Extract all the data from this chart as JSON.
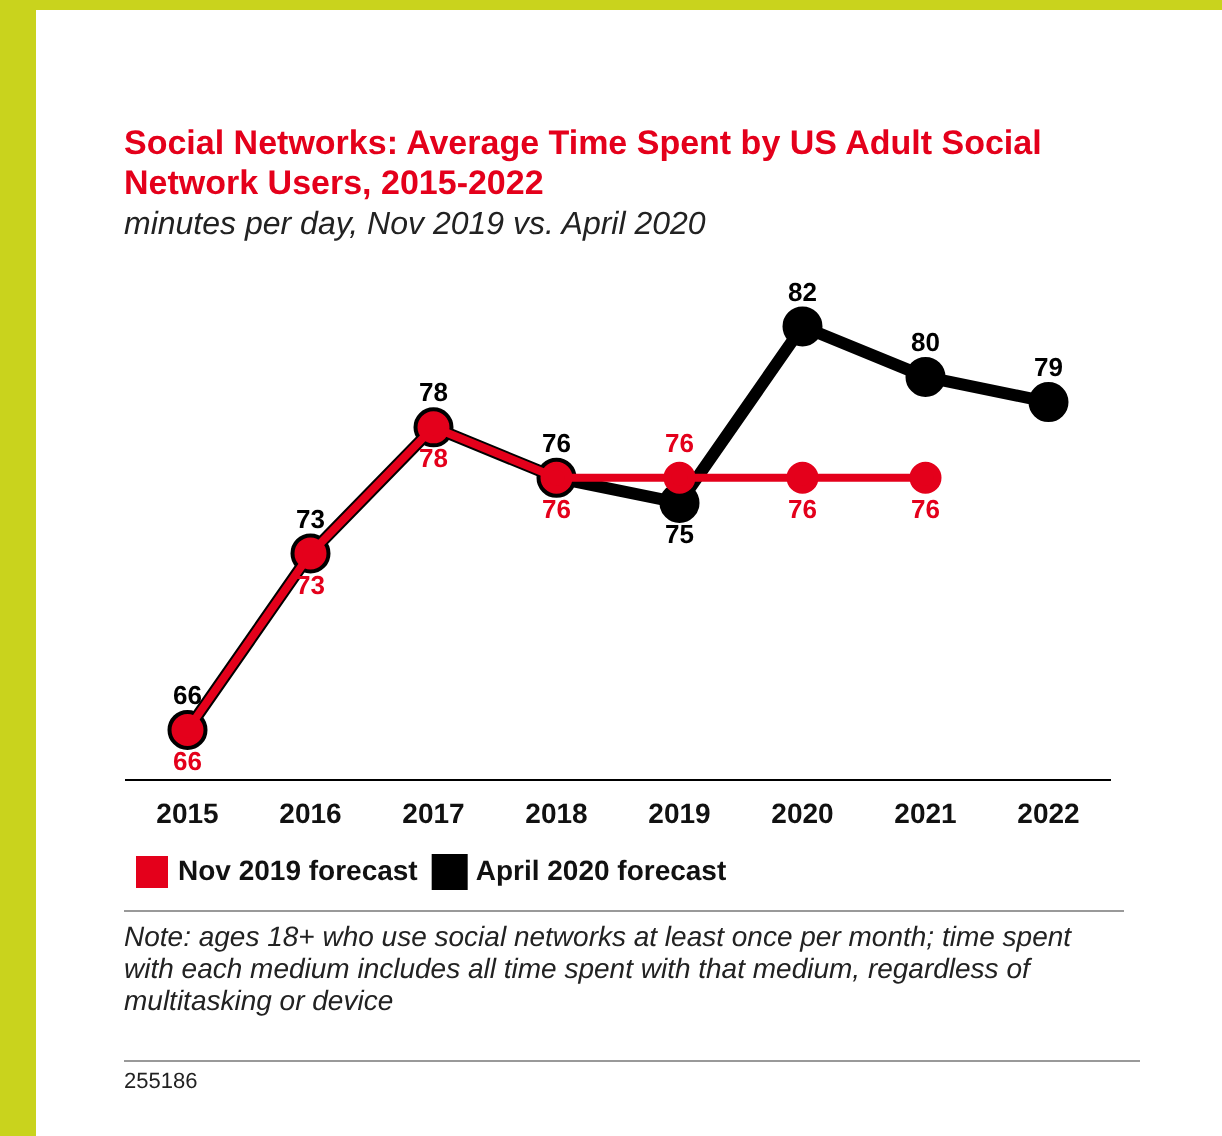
{
  "chart_data": {
    "type": "line",
    "title": "Social Networks: Average Time Spent by US Adult Social Network Users, 2015-2022",
    "subtitle": "minutes per day, Nov 2019 vs. April 2020",
    "categories": [
      "2015",
      "2016",
      "2017",
      "2018",
      "2019",
      "2020",
      "2021",
      "2022"
    ],
    "series": [
      {
        "name": "Nov 2019 forecast",
        "color": "#e4001b",
        "values": [
          66,
          73,
          78,
          76,
          76,
          76,
          76,
          null
        ]
      },
      {
        "name": "April 2020 forecast",
        "color": "#000000",
        "values": [
          66,
          73,
          78,
          76,
          75,
          82,
          80,
          79
        ]
      }
    ],
    "grid": false,
    "legend": "bottom",
    "marker": "circle",
    "line_style": "solid",
    "data_labels": true,
    "tick_labels": "x",
    "annotations": [
      "Note: ages 18+ who use social networks at least once per month; time spent with each medium includes all time spent with that medium, regardless of multitasking or device",
      "255186"
    ]
  }
}
